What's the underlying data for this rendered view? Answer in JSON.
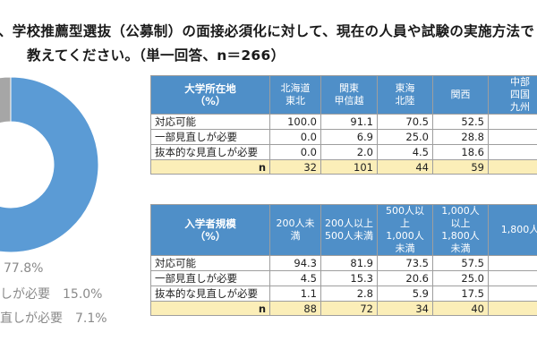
{
  "question": {
    "line1": "、学校推薦型選抜（公募制）の面接必須化に対して、現在の人員や試験の実施方法で",
    "line2": "教えてください。（単一回答、n＝266）"
  },
  "chart_data": {
    "type": "pie",
    "categories": [
      "対応可能",
      "一部見直しが必要",
      "抜本的な見直しが必要"
    ],
    "values": [
      77.8,
      15.0,
      7.1
    ],
    "colors": [
      "#5b9bd5",
      "#ffffff",
      "#a6a6a6"
    ],
    "legend": [
      "77.8%",
      "しが必要　15.0%",
      "直しが必要　7.1%"
    ]
  },
  "table1": {
    "header_label": "大学所在地\n（%）",
    "columns": [
      "北海道\n東北",
      "関東\n甲信越",
      "東海\n北陸",
      "関西",
      "中部\n四国\n九州"
    ],
    "rows": [
      {
        "label": "対応可能",
        "values": [
          "100.0",
          "91.1",
          "70.5",
          "52.5",
          ""
        ]
      },
      {
        "label": "一部見直しが必要",
        "values": [
          "0.0",
          "6.9",
          "25.0",
          "28.8",
          ""
        ]
      },
      {
        "label": "抜本的な見直しが必要",
        "values": [
          "0.0",
          "2.0",
          "4.5",
          "18.6",
          ""
        ]
      }
    ],
    "n_label": "n",
    "n_values": [
      "32",
      "101",
      "44",
      "59",
      ""
    ]
  },
  "table2": {
    "header_label": "入学者規模\n（%）",
    "columns": [
      "200人未満",
      "200人以上\n500人未満",
      "500人以上\n1,000人未満",
      "1,000人以上\n1,800人未満",
      "1,800人"
    ],
    "rows": [
      {
        "label": "対応可能",
        "values": [
          "94.3",
          "81.9",
          "73.5",
          "57.5",
          ""
        ]
      },
      {
        "label": "一部見直しが必要",
        "values": [
          "4.5",
          "15.3",
          "20.6",
          "25.0",
          ""
        ]
      },
      {
        "label": "抜本的な見直しが必要",
        "values": [
          "1.1",
          "2.8",
          "5.9",
          "17.5",
          ""
        ]
      }
    ],
    "n_label": "n",
    "n_values": [
      "88",
      "72",
      "34",
      "40",
      ""
    ]
  }
}
